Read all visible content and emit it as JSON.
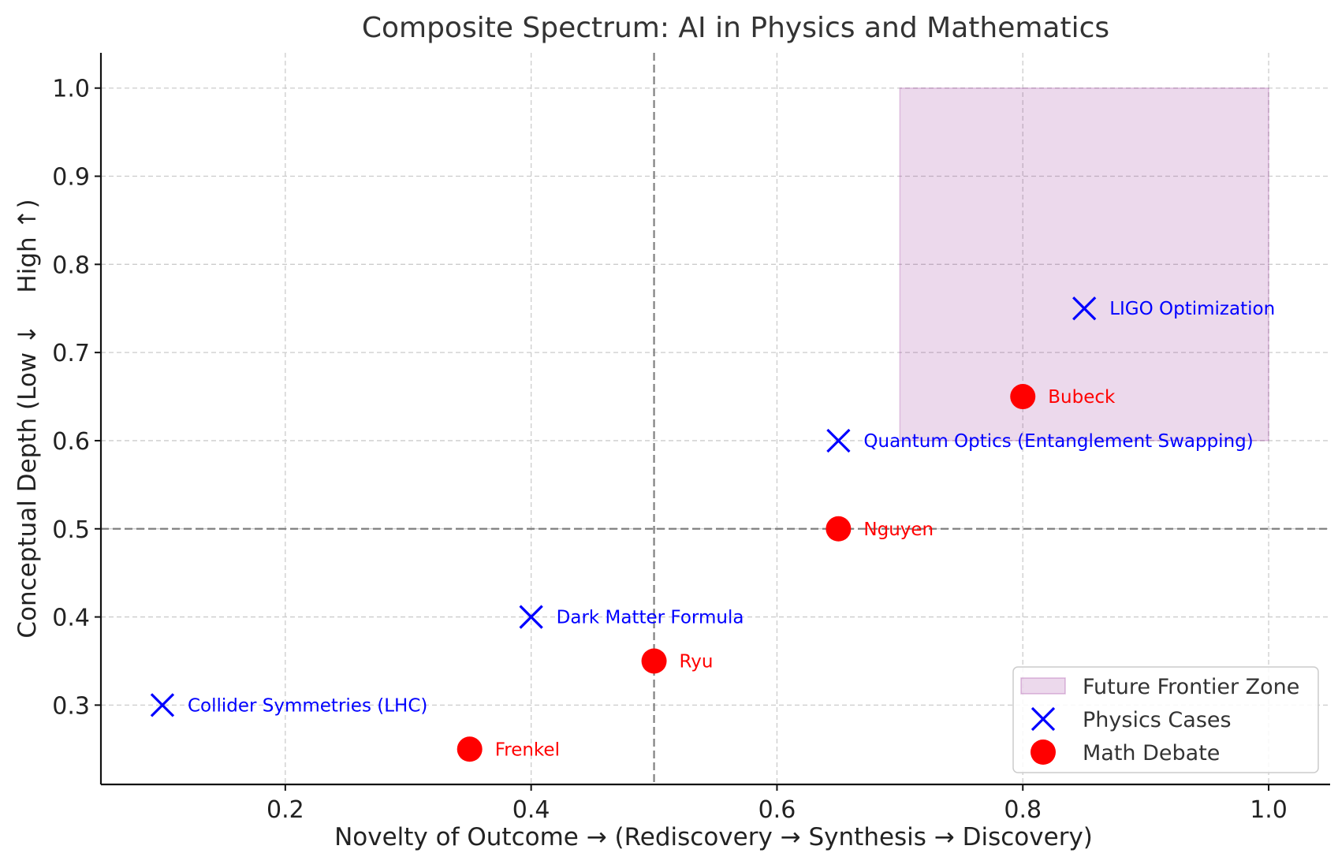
{
  "chart_data": {
    "type": "scatter",
    "title": "Composite Spectrum: AI in Physics and Mathematics",
    "xlabel": "Novelty of Outcome → (Rediscovery → Synthesis → Discovery)",
    "ylabel": "Conceptual Depth (Low ↓    High ↑)",
    "xlim": [
      0.05,
      1.05
    ],
    "ylim": [
      0.21,
      1.04
    ],
    "x_ticks": [
      {
        "value": 0.2,
        "label": "0.2"
      },
      {
        "value": 0.4,
        "label": "0.4"
      },
      {
        "value": 0.6,
        "label": "0.6"
      },
      {
        "value": 0.8,
        "label": "0.8"
      },
      {
        "value": 1.0,
        "label": "1.0"
      }
    ],
    "y_ticks": [
      {
        "value": 0.3,
        "label": "0.3"
      },
      {
        "value": 0.4,
        "label": "0.4"
      },
      {
        "value": 0.5,
        "label": "0.5"
      },
      {
        "value": 0.6,
        "label": "0.6"
      },
      {
        "value": 0.7,
        "label": "0.7"
      },
      {
        "value": 0.8,
        "label": "0.8"
      },
      {
        "value": 0.9,
        "label": "0.9"
      },
      {
        "value": 1.0,
        "label": "1.0"
      }
    ],
    "grid": true,
    "reference_lines": {
      "x": 0.5,
      "y": 0.5,
      "style": "dashed",
      "color": "#808080"
    },
    "shaded_region": {
      "name": "Future Frontier Zone",
      "x": [
        0.7,
        1.0
      ],
      "y": [
        0.6,
        1.0
      ],
      "color": "#800080",
      "opacity": 0.15
    },
    "series": [
      {
        "name": "Physics Cases",
        "marker": "x",
        "color": "#0000ff",
        "points": [
          {
            "x": 0.1,
            "y": 0.3,
            "label": "Collider Symmetries (LHC)"
          },
          {
            "x": 0.4,
            "y": 0.4,
            "label": "Dark Matter Formula"
          },
          {
            "x": 0.65,
            "y": 0.6,
            "label": "Quantum Optics (Entanglement Swapping)"
          },
          {
            "x": 0.85,
            "y": 0.75,
            "label": "LIGO Optimization"
          }
        ]
      },
      {
        "name": "Math Debate",
        "marker": "o",
        "color": "#ff0000",
        "points": [
          {
            "x": 0.35,
            "y": 0.25,
            "label": "Frenkel"
          },
          {
            "x": 0.5,
            "y": 0.35,
            "label": "Ryu"
          },
          {
            "x": 0.65,
            "y": 0.5,
            "label": "Nguyen"
          },
          {
            "x": 0.8,
            "y": 0.65,
            "label": "Bubeck"
          }
        ]
      }
    ],
    "legend": {
      "position": "lower-right",
      "entries": [
        {
          "label": "Future Frontier Zone",
          "kind": "patch"
        },
        {
          "label": "Physics Cases",
          "kind": "x"
        },
        {
          "label": "Math Debate",
          "kind": "o"
        }
      ]
    }
  }
}
